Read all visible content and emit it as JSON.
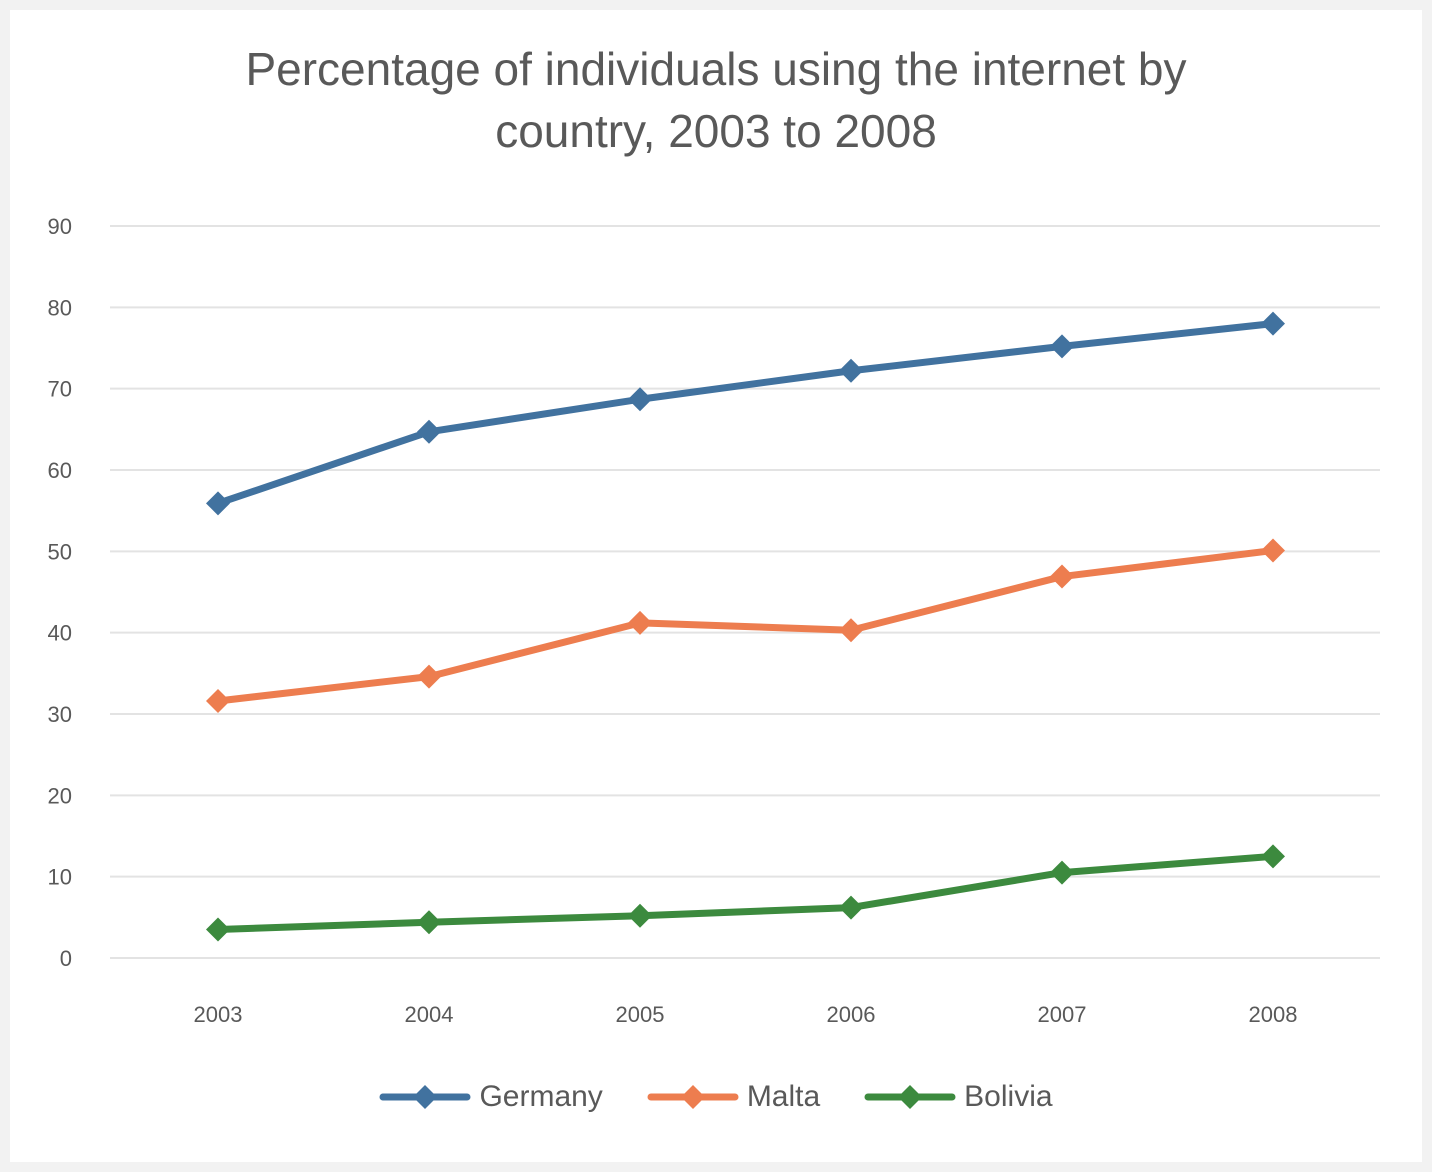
{
  "chart_data": {
    "type": "line",
    "title_lines": [
      "Percentage of individuals using the internet by",
      "country, 2003 to 2008"
    ],
    "xlabel": "",
    "ylabel": "",
    "categories": [
      "2003",
      "2004",
      "2005",
      "2006",
      "2007",
      "2008"
    ],
    "ylim": [
      0,
      90
    ],
    "yticks": [
      "0",
      "10",
      "20",
      "30",
      "40",
      "50",
      "60",
      "70",
      "80",
      "90"
    ],
    "grid": true,
    "legend_position": "bottom",
    "series": [
      {
        "name": "Germany",
        "color": "#41729f",
        "values": [
          55.9,
          64.7,
          68.7,
          72.2,
          75.2,
          78.0
        ]
      },
      {
        "name": "Malta",
        "color": "#ed7d4f",
        "values": [
          31.6,
          34.6,
          41.2,
          40.3,
          46.9,
          50.1
        ]
      },
      {
        "name": "Bolivia",
        "color": "#3c8a3e",
        "values": [
          3.5,
          4.4,
          5.2,
          6.2,
          10.5,
          12.5
        ]
      }
    ]
  }
}
